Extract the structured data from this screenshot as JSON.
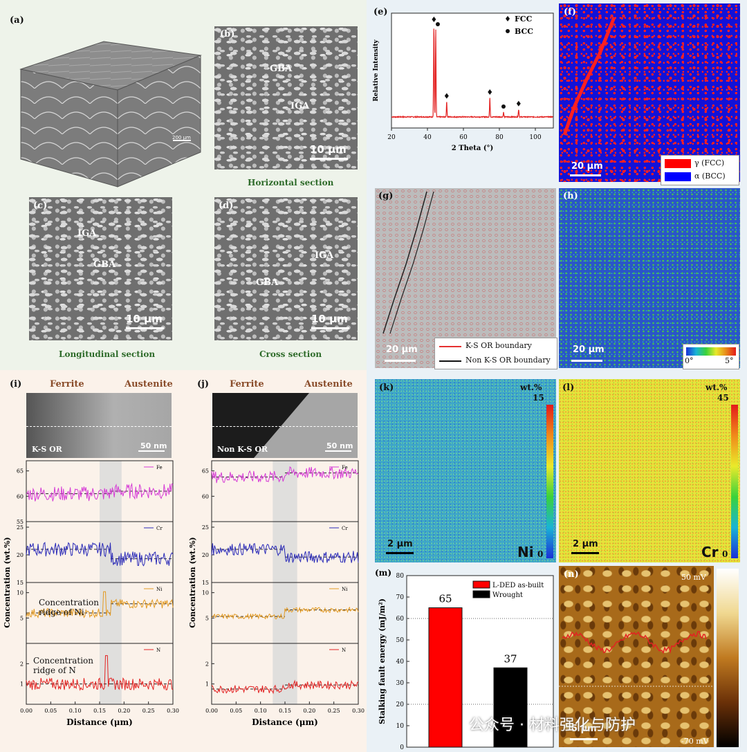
{
  "panels": {
    "a": {
      "label": "(a)",
      "scalebar": "200 μm"
    },
    "b": {
      "label": "(b)",
      "annotations": [
        "GBA",
        "IGA"
      ],
      "scalebar": "10 μm",
      "caption": "Horizontal section"
    },
    "c": {
      "label": "(c)",
      "annotations": [
        "IGA",
        "GBA"
      ],
      "scalebar": "10 μm",
      "caption": "Longitudinal section"
    },
    "d": {
      "label": "(d)",
      "annotations": [
        "IGA",
        "GBA"
      ],
      "scalebar": "10 μm",
      "caption": "Cross section"
    },
    "e": {
      "label": "(e)"
    },
    "f": {
      "label": "(f)",
      "scalebar": "20 μm",
      "legend": [
        {
          "name": "γ (FCC)",
          "color": "#ff0000"
        },
        {
          "name": "α (BCC)",
          "color": "#0000ff"
        }
      ]
    },
    "g": {
      "label": "(g)",
      "scalebar": "20 μm",
      "legend": [
        {
          "name": "K-S OR boundary",
          "color": "#e53030"
        },
        {
          "name": "Non K-S OR boundary",
          "color": "#111111"
        }
      ]
    },
    "h": {
      "label": "(h)",
      "scalebar": "20 μm",
      "cbar_min": "0°",
      "cbar_max": "5°"
    },
    "i": {
      "label": "(i)",
      "left": "Ferrite",
      "right": "Austenite",
      "tem_label": "K-S OR",
      "scalebar": "50 nm",
      "annot_ni": "Concentration ridge of Ni",
      "annot_n": "Concentration ridge of N"
    },
    "j": {
      "label": "(j)",
      "left": "Ferrite",
      "right": "Austenite",
      "tem_label": "Non K-S OR",
      "scalebar": "50 nm"
    },
    "k": {
      "label": "(k)",
      "unit": "wt.%",
      "max": "15",
      "min": "0",
      "element": "Ni",
      "scalebar": "2 μm"
    },
    "l": {
      "label": "(l)",
      "unit": "wt.%",
      "max": "45",
      "min": "0",
      "element": "Cr",
      "scalebar": "2 μm"
    },
    "m": {
      "label": "(m)"
    },
    "n": {
      "label": "(n)",
      "max": "50 mV",
      "min": "-70 mV",
      "scalebar": "5 μm"
    }
  },
  "watermark": "公众号 · 材料强化与防护",
  "chart_data": [
    {
      "id": "e",
      "type": "line",
      "xlabel": "2 Theta (°)",
      "ylabel": "Relative Intensity",
      "xlim": [
        20,
        110
      ],
      "xticks": [
        20,
        40,
        60,
        80,
        100
      ],
      "legend": [
        {
          "name": "FCC",
          "marker": "diamond"
        },
        {
          "name": "BCC",
          "marker": "circle"
        }
      ],
      "peaks": [
        {
          "x": 43.6,
          "height": 0.95,
          "phase": "FCC"
        },
        {
          "x": 44.6,
          "height": 0.9,
          "phase": "BCC"
        },
        {
          "x": 50.7,
          "height": 0.16,
          "phase": "FCC"
        },
        {
          "x": 74.7,
          "height": 0.2,
          "phase": "FCC"
        },
        {
          "x": 82.3,
          "height": 0.05,
          "phase": "BCC"
        },
        {
          "x": 90.7,
          "height": 0.08,
          "phase": "FCC"
        }
      ],
      "color": "#e32222"
    },
    {
      "id": "i",
      "type": "line",
      "xlabel": "Distance (μm)",
      "ylabel": "Concentration (wt.%)",
      "xlim": [
        0,
        0.3
      ],
      "xticks": [
        0.0,
        0.05,
        0.1,
        0.15,
        0.2,
        0.25,
        0.3
      ],
      "highlight": [
        0.15,
        0.195
      ],
      "series": [
        {
          "name": "Fe",
          "color": "#d63bd6",
          "ylim": [
            55,
            67
          ],
          "yticks": [
            55,
            60,
            65
          ],
          "base_left": 60.5,
          "base_right": 61.0,
          "noise": 1.5
        },
        {
          "name": "Cr",
          "color": "#2b2bb8",
          "ylim": [
            15,
            26
          ],
          "yticks": [
            15,
            20,
            25
          ],
          "base_left": 21.0,
          "base_right": 19.3,
          "noise": 1.3
        },
        {
          "name": "Ni",
          "color": "#e39a22",
          "ylim": [
            0,
            12
          ],
          "yticks": [
            5,
            10
          ],
          "base_left": 6.0,
          "base_right": 7.8,
          "noise": 0.9,
          "peak": {
            "x": 0.16,
            "y": 10.2
          }
        },
        {
          "name": "N",
          "color": "#e32222",
          "ylim": [
            0,
            3
          ],
          "yticks": [
            1,
            2
          ],
          "base_left": 1.0,
          "base_right": 1.0,
          "noise": 0.3,
          "peak": {
            "x": 0.165,
            "y": 2.4
          }
        }
      ]
    },
    {
      "id": "j",
      "type": "line",
      "xlabel": "Distance (μm)",
      "ylabel": "Concentration (wt.%)",
      "xlim": [
        0,
        0.3
      ],
      "xticks": [
        0.0,
        0.05,
        0.1,
        0.15,
        0.2,
        0.25,
        0.3
      ],
      "highlight": [
        0.125,
        0.175
      ],
      "series": [
        {
          "name": "Fe",
          "color": "#d63bd6",
          "ylim": [
            55,
            67
          ],
          "yticks": [
            60,
            65
          ],
          "base_left": 63.8,
          "base_right": 64.6,
          "noise": 1.2
        },
        {
          "name": "Cr",
          "color": "#2b2bb8",
          "ylim": [
            15,
            26
          ],
          "yticks": [
            15,
            20,
            25
          ],
          "base_left": 21.0,
          "base_right": 19.6,
          "noise": 1.1
        },
        {
          "name": "Ni",
          "color": "#e39a22",
          "ylim": [
            0,
            12
          ],
          "yticks": [
            5,
            10
          ],
          "base_left": 5.3,
          "base_right": 6.6,
          "noise": 0.5
        },
        {
          "name": "N",
          "color": "#e32222",
          "ylim": [
            0,
            3
          ],
          "yticks": [
            1,
            2
          ],
          "base_left": 0.75,
          "base_right": 0.95,
          "noise": 0.2
        }
      ]
    },
    {
      "id": "m",
      "type": "bar",
      "ylabel": "Stalking fault energy (mJ/m²)",
      "ylim": [
        0,
        80
      ],
      "yticks": [
        0,
        10,
        20,
        30,
        40,
        50,
        60,
        70,
        80
      ],
      "reference_lines": [
        20,
        60
      ],
      "categories": [
        "L-DED as-built",
        "Wrought"
      ],
      "values": [
        65,
        37
      ],
      "value_labels": [
        "65",
        "37"
      ],
      "colors": [
        "#ff0000",
        "#000000"
      ],
      "legend": [
        {
          "name": "L-DED as-built",
          "color": "#ff0000"
        },
        {
          "name": "Wrought",
          "color": "#000000"
        }
      ]
    }
  ]
}
